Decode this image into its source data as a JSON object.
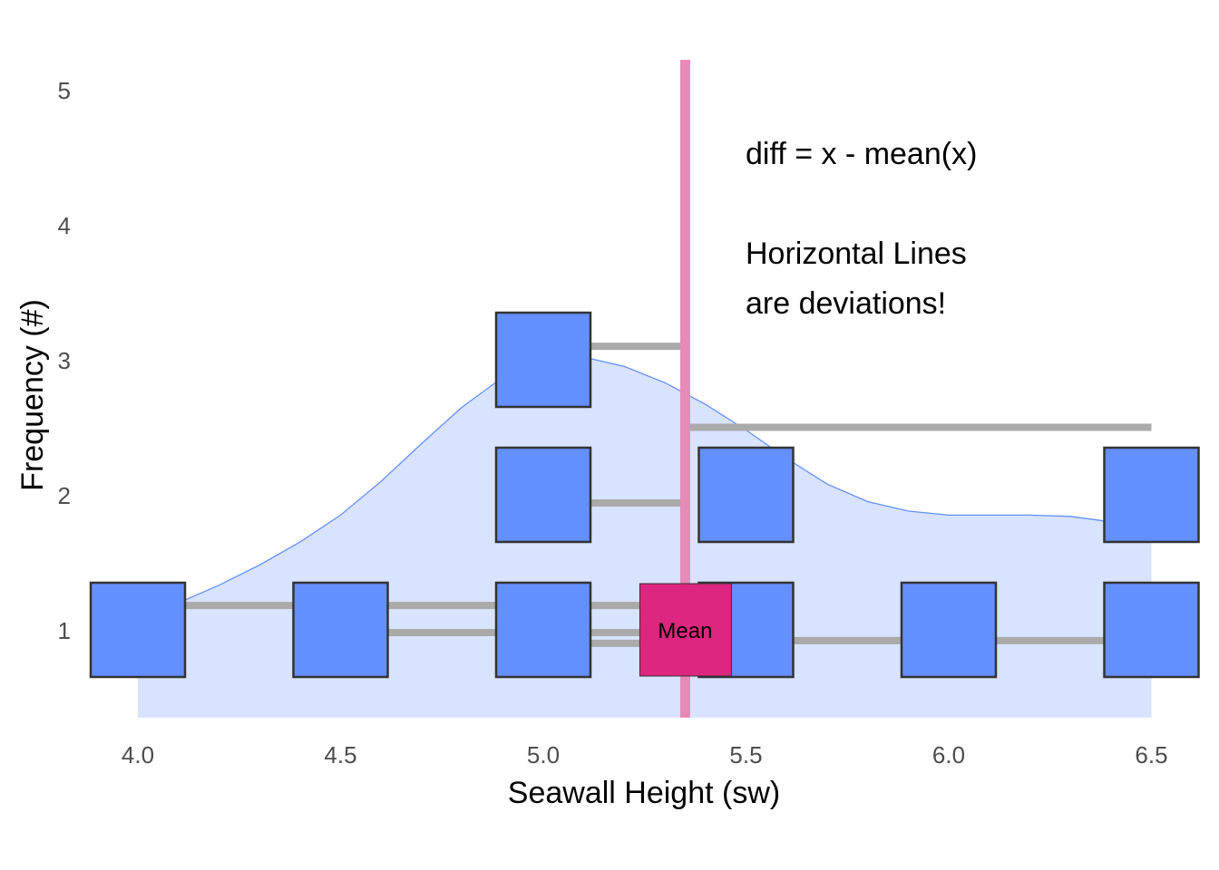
{
  "chart_data": {
    "type": "dotplot",
    "xlabel": "Seawall Height (sw)",
    "ylabel": "Frequency (#)",
    "xlim": [
      3.9,
      6.6
    ],
    "ylim": [
      0.35,
      5.25
    ],
    "x_ticks": [
      "4.0",
      "4.5",
      "5.0",
      "5.5",
      "6.0",
      "6.5"
    ],
    "y_ticks": [
      "1",
      "2",
      "3",
      "4",
      "5"
    ],
    "points": [
      {
        "x": 4.0,
        "y": 1
      },
      {
        "x": 4.5,
        "y": 1
      },
      {
        "x": 5.0,
        "y": 1
      },
      {
        "x": 5.0,
        "y": 2
      },
      {
        "x": 5.0,
        "y": 3
      },
      {
        "x": 5.5,
        "y": 1
      },
      {
        "x": 5.5,
        "y": 2
      },
      {
        "x": 6.0,
        "y": 1
      },
      {
        "x": 6.5,
        "y": 1
      },
      {
        "x": 6.5,
        "y": 2
      }
    ],
    "mean": 5.35,
    "mean_label": "Mean",
    "deviations": [
      {
        "x": 4.0,
        "y": 1.18
      },
      {
        "x": 4.5,
        "y": 0.98
      },
      {
        "x": 5.0,
        "y": 0.9
      },
      {
        "x": 5.0,
        "y": 1.94
      },
      {
        "x": 5.0,
        "y": 3.1
      },
      {
        "x": 5.5,
        "y": 1.18
      },
      {
        "x": 5.5,
        "y": 0.92
      },
      {
        "x": 6.0,
        "y": 0.92
      },
      {
        "x": 6.5,
        "y": 0.92
      },
      {
        "x": 6.5,
        "y": 2.5
      }
    ],
    "density": [
      [
        4.0,
        1.12
      ],
      [
        4.1,
        1.2
      ],
      [
        4.2,
        1.33
      ],
      [
        4.3,
        1.48
      ],
      [
        4.4,
        1.65
      ],
      [
        4.5,
        1.85
      ],
      [
        4.6,
        2.1
      ],
      [
        4.7,
        2.38
      ],
      [
        4.8,
        2.65
      ],
      [
        4.9,
        2.87
      ],
      [
        5.0,
        3.0
      ],
      [
        5.1,
        3.02
      ],
      [
        5.2,
        2.95
      ],
      [
        5.3,
        2.83
      ],
      [
        5.4,
        2.67
      ],
      [
        5.5,
        2.48
      ],
      [
        5.6,
        2.27
      ],
      [
        5.7,
        2.08
      ],
      [
        5.8,
        1.95
      ],
      [
        5.9,
        1.88
      ],
      [
        6.0,
        1.85
      ],
      [
        6.1,
        1.85
      ],
      [
        6.2,
        1.85
      ],
      [
        6.3,
        1.84
      ],
      [
        6.4,
        1.8
      ],
      [
        6.5,
        1.76
      ]
    ],
    "annotation": [
      "diff = x - mean(x)",
      "",
      "Horizontal Lines",
      "are deviations!"
    ],
    "colors": {
      "point_fill": "#648fff",
      "point_stroke": "#333333",
      "density_fill": "#d8e3ff",
      "density_line": "#648fff",
      "mean_line": "#e78ab8",
      "mean_box": "#dc267f",
      "deviation": "#aaaaaa"
    }
  }
}
